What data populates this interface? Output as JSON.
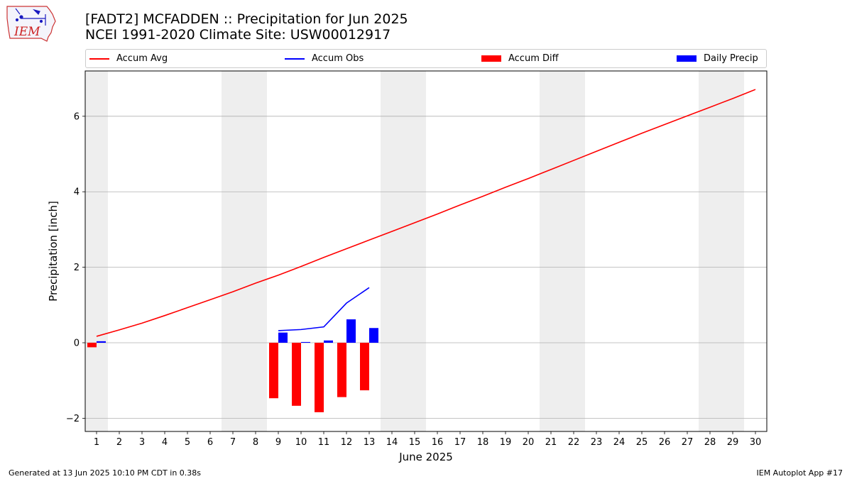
{
  "header": {
    "title_line1": "[FADT2] MCFADDEN :: Precipitation for Jun 2025",
    "title_line2": "NCEI 1991-2020 Climate Site: USW00012917"
  },
  "logo": {
    "text": "IEM",
    "icon": "iem-iowa-weather-logo"
  },
  "footer": {
    "generated": "Generated at 13 Jun 2025 10:10 PM CDT in 0.38s",
    "app": "IEM Autoplot App #17"
  },
  "chart_data": {
    "type": "bar",
    "title": "[FADT2] MCFADDEN :: Precipitation for Jun 2025",
    "subtitle": "NCEI 1991-2020 Climate Site: USW00012917",
    "xlabel": "June 2025",
    "ylabel": "Precipitation [inch]",
    "x": [
      1,
      2,
      3,
      4,
      5,
      6,
      7,
      8,
      9,
      10,
      11,
      12,
      13,
      14,
      15,
      16,
      17,
      18,
      19,
      20,
      21,
      22,
      23,
      24,
      25,
      26,
      27,
      28,
      29,
      30
    ],
    "xlim": [
      0.5,
      30.5
    ],
    "ylim": [
      -2.35,
      7.2
    ],
    "yticks": [
      -2,
      0,
      2,
      4,
      6
    ],
    "grid": "y",
    "legend_position": "top",
    "weekend_shading": [
      [
        0.5,
        1.5
      ],
      [
        6.5,
        8.5
      ],
      [
        13.5,
        15.5
      ],
      [
        20.5,
        22.5
      ],
      [
        27.5,
        29.5
      ]
    ],
    "series": [
      {
        "name": "Accum Avg",
        "kind": "line",
        "color": "#ff0000",
        "x": [
          1,
          2,
          3,
          4,
          5,
          6,
          7,
          8,
          9,
          10,
          11,
          12,
          13,
          14,
          15,
          16,
          17,
          18,
          19,
          20,
          21,
          22,
          23,
          24,
          25,
          26,
          27,
          28,
          29,
          30
        ],
        "values": [
          0.17,
          0.34,
          0.52,
          0.72,
          0.93,
          1.14,
          1.35,
          1.58,
          1.79,
          2.02,
          2.26,
          2.49,
          2.72,
          2.95,
          3.18,
          3.41,
          3.65,
          3.88,
          4.12,
          4.35,
          4.59,
          4.83,
          5.07,
          5.31,
          5.55,
          5.78,
          6.01,
          6.24,
          6.47,
          6.71
        ]
      },
      {
        "name": "Accum Obs",
        "kind": "line",
        "color": "#0000ff",
        "x": [
          9,
          10,
          11,
          12,
          13
        ],
        "values": [
          0.32,
          0.35,
          0.42,
          1.05,
          1.46
        ]
      },
      {
        "name": "Accum Diff",
        "kind": "bar",
        "color": "#ff0000",
        "x": [
          1,
          9,
          10,
          11,
          12,
          13
        ],
        "values": [
          -0.12,
          -1.47,
          -1.67,
          -1.84,
          -1.44,
          -1.26
        ]
      },
      {
        "name": "Daily Precip",
        "kind": "bar",
        "color": "#0000ff",
        "x": [
          1,
          9,
          10,
          11,
          12,
          13
        ],
        "values": [
          0.04,
          0.27,
          0.02,
          0.06,
          0.62,
          0.39
        ]
      }
    ]
  }
}
